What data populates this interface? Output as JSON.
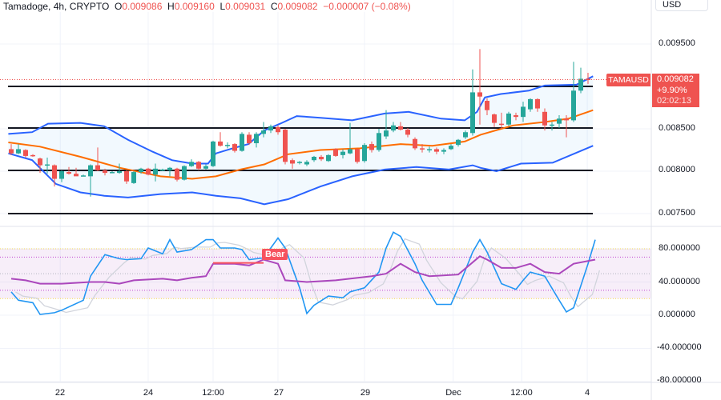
{
  "header": {
    "symbol": "Tamadoge, 4h, CRYPTO",
    "o_label": "O",
    "o": "0.009086",
    "h_label": "H",
    "h": "0.009160",
    "l_label": "L",
    "l": "0.009031",
    "c_label": "C",
    "c": "0.009082",
    "change": "−0.000007 (−0.08%)"
  },
  "currency": "USD",
  "price_label": {
    "symbol": "TAMAUSD",
    "price": "0.009082",
    "change": "+9.90%",
    "countdown": "02:02:13"
  },
  "colors": {
    "up": "#26a69a",
    "down": "#ef5350",
    "bands": "#2962ff",
    "basis": "#ff6d00",
    "k": "#2196f3",
    "rsi": "#ab47bc",
    "bear": "#f7525f"
  },
  "chart_data": [
    {
      "type": "candlestick",
      "y_ticks": [
        "0.009500",
        "0.008500",
        "0.008000",
        "0.007500"
      ],
      "y_tick_values": [
        0.0095,
        0.0085,
        0.008,
        0.0075
      ],
      "ylim": [
        0.00742,
        0.0097
      ],
      "x_ticks": [
        "22",
        "24",
        "12:00",
        "27",
        "29",
        "Dec",
        "12:00",
        "4"
      ],
      "x_tick_bars": [
        6.8,
        19,
        28,
        37,
        49,
        61.3,
        70.8,
        79.9
      ],
      "candles_ohlc": [
        [
          0.00826,
          0.00832,
          0.00819,
          0.00821
        ],
        [
          0.00821,
          0.00832,
          0.0082,
          0.00826
        ],
        [
          0.00825,
          0.00826,
          0.00816,
          0.00818
        ],
        [
          0.00819,
          0.0082,
          0.00817,
          0.00818
        ],
        [
          0.00815,
          0.00816,
          0.00798,
          0.00807
        ],
        [
          0.00807,
          0.00816,
          0.00797,
          0.00808
        ],
        [
          0.00807,
          0.00808,
          0.00782,
          0.00791
        ],
        [
          0.00791,
          0.00801,
          0.00787,
          0.008
        ],
        [
          0.00799,
          0.00805,
          0.00796,
          0.00797
        ],
        [
          0.00797,
          0.00804,
          0.00795,
          0.00794
        ],
        [
          0.00795,
          0.00796,
          0.00794,
          0.00795
        ],
        [
          0.00794,
          0.00808,
          0.0077,
          0.00807
        ],
        [
          0.00807,
          0.00828,
          0.008,
          0.00801
        ],
        [
          0.00801,
          0.00803,
          0.00795,
          0.00798
        ],
        [
          0.00799,
          0.008,
          0.00798,
          0.00799
        ],
        [
          0.00798,
          0.00809,
          0.00797,
          0.008
        ],
        [
          0.008,
          0.00801,
          0.00785,
          0.00788
        ],
        [
          0.00786,
          0.008,
          0.00785,
          0.00799
        ],
        [
          0.00799,
          0.00804,
          0.00797,
          0.00803
        ],
        [
          0.00803,
          0.00804,
          0.00795,
          0.00796
        ],
        [
          0.00796,
          0.00809,
          0.00788,
          0.00803
        ],
        [
          0.00801,
          0.00803,
          0.008,
          0.00802
        ],
        [
          0.00801,
          0.00805,
          0.00794,
          0.00804
        ],
        [
          0.00803,
          0.00804,
          0.00788,
          0.0079
        ],
        [
          0.0079,
          0.00807,
          0.00789,
          0.00806
        ],
        [
          0.00806,
          0.00814,
          0.00805,
          0.00811
        ],
        [
          0.00811,
          0.00812,
          0.00801,
          0.00803
        ],
        [
          0.00803,
          0.00808,
          0.00802,
          0.00806
        ],
        [
          0.00806,
          0.00836,
          0.00805,
          0.00835
        ],
        [
          0.00835,
          0.00846,
          0.00829,
          0.0083
        ],
        [
          0.0083,
          0.00834,
          0.00827,
          0.00831
        ],
        [
          0.00832,
          0.00833,
          0.00822,
          0.00824
        ],
        [
          0.00824,
          0.00846,
          0.00823,
          0.00844
        ],
        [
          0.00843,
          0.00846,
          0.00831,
          0.00833
        ],
        [
          0.00833,
          0.00846,
          0.00828,
          0.00844
        ],
        [
          0.00844,
          0.00858,
          0.0084,
          0.00848
        ],
        [
          0.00848,
          0.00855,
          0.00845,
          0.00853
        ],
        [
          0.00852,
          0.00854,
          0.00843,
          0.00846
        ],
        [
          0.00849,
          0.0085,
          0.00808,
          0.00811
        ],
        [
          0.00813,
          0.00815,
          0.00803,
          0.00809
        ],
        [
          0.0081,
          0.00812,
          0.00808,
          0.00811
        ],
        [
          0.00808,
          0.00813,
          0.00806,
          0.00811
        ],
        [
          0.00813,
          0.00818,
          0.00811,
          0.00817
        ],
        [
          0.00817,
          0.00819,
          0.00812,
          0.00814
        ],
        [
          0.00812,
          0.0082,
          0.00811,
          0.00819
        ],
        [
          0.00826,
          0.00827,
          0.00817,
          0.00818
        ],
        [
          0.00819,
          0.00826,
          0.00815,
          0.00823
        ],
        [
          0.00821,
          0.00857,
          0.0082,
          0.00826
        ],
        [
          0.00826,
          0.00827,
          0.00809,
          0.00811
        ],
        [
          0.00812,
          0.00833,
          0.0081,
          0.00831
        ],
        [
          0.00832,
          0.00835,
          0.00822,
          0.00825
        ],
        [
          0.00825,
          0.0085,
          0.00823,
          0.00845
        ],
        [
          0.00841,
          0.00872,
          0.00838,
          0.00848
        ],
        [
          0.00848,
          0.00858,
          0.00846,
          0.00854
        ],
        [
          0.00853,
          0.00858,
          0.00848,
          0.00849
        ],
        [
          0.00849,
          0.00851,
          0.0084,
          0.00843
        ],
        [
          0.00838,
          0.0084,
          0.00825,
          0.00827
        ],
        [
          0.00827,
          0.00832,
          0.00822,
          0.00826
        ],
        [
          0.00826,
          0.00829,
          0.00822,
          0.00826
        ],
        [
          0.00826,
          0.00828,
          0.0082,
          0.00823
        ],
        [
          0.00823,
          0.00827,
          0.0082,
          0.00825
        ],
        [
          0.00826,
          0.00832,
          0.00825,
          0.0083
        ],
        [
          0.00831,
          0.00838,
          0.00829,
          0.00837
        ],
        [
          0.0084,
          0.00848,
          0.00838,
          0.00846
        ],
        [
          0.00845,
          0.0092,
          0.00842,
          0.00893
        ],
        [
          0.00893,
          0.00944,
          0.00855,
          0.00888
        ],
        [
          0.00883,
          0.00886,
          0.00866,
          0.00872
        ],
        [
          0.00867,
          0.00868,
          0.00852,
          0.00857
        ],
        [
          0.00856,
          0.00869,
          0.0085,
          0.00855
        ],
        [
          0.00855,
          0.0087,
          0.00853,
          0.00868
        ],
        [
          0.00866,
          0.00869,
          0.0086,
          0.00864
        ],
        [
          0.00864,
          0.00882,
          0.00858,
          0.00876
        ],
        [
          0.00873,
          0.00886,
          0.0087,
          0.00885
        ],
        [
          0.00885,
          0.00886,
          0.0087,
          0.00874
        ],
        [
          0.0087,
          0.00874,
          0.00848,
          0.00854
        ],
        [
          0.00855,
          0.00858,
          0.00848,
          0.00855
        ],
        [
          0.00856,
          0.00866,
          0.00851,
          0.00862
        ],
        [
          0.00862,
          0.00866,
          0.0084,
          0.0086
        ],
        [
          0.0086,
          0.00929,
          0.00858,
          0.00895
        ],
        [
          0.00895,
          0.00922,
          0.00892,
          0.00909
        ],
        [
          0.00909,
          0.00916,
          0.00903,
          0.00908
        ]
      ],
      "bollinger_upper": [
        [
          -0.4,
          0.00844
        ],
        [
          2.9,
          0.00846
        ],
        [
          5.1,
          0.00856
        ],
        [
          9.6,
          0.00857
        ],
        [
          12.9,
          0.00853
        ],
        [
          16.2,
          0.00837
        ],
        [
          19.6,
          0.00823
        ],
        [
          22.3,
          0.00813
        ],
        [
          25.1,
          0.00809
        ],
        [
          27.3,
          0.00809
        ],
        [
          28.4,
          0.00821
        ],
        [
          30.7,
          0.00827
        ],
        [
          32.9,
          0.00832
        ],
        [
          35.1,
          0.00848
        ],
        [
          37.3,
          0.00856
        ],
        [
          39.6,
          0.00865
        ],
        [
          42.9,
          0.00863
        ],
        [
          47.3,
          0.0086
        ],
        [
          51.8,
          0.00868
        ],
        [
          55.1,
          0.0087
        ],
        [
          59.6,
          0.00862
        ],
        [
          62.9,
          0.0086
        ],
        [
          64.6,
          0.0087
        ],
        [
          65.7,
          0.00887
        ],
        [
          67.9,
          0.00891
        ],
        [
          71.8,
          0.00895
        ],
        [
          74,
          0.00901
        ],
        [
          78.4,
          0.00902
        ],
        [
          80.7,
          0.00912
        ]
      ],
      "bollinger_lower": [
        [
          -0.4,
          0.00821
        ],
        [
          2.9,
          0.00813
        ],
        [
          6.2,
          0.00785
        ],
        [
          9.6,
          0.00775
        ],
        [
          12.9,
          0.00771
        ],
        [
          16.2,
          0.00769
        ],
        [
          20.7,
          0.00773
        ],
        [
          25.1,
          0.00775
        ],
        [
          28.4,
          0.00771
        ],
        [
          31.8,
          0.00768
        ],
        [
          35.1,
          0.00761
        ],
        [
          38.4,
          0.00767
        ],
        [
          42.9,
          0.00782
        ],
        [
          47.3,
          0.00794
        ],
        [
          51.8,
          0.00802
        ],
        [
          56.2,
          0.00805
        ],
        [
          60.7,
          0.00802
        ],
        [
          64,
          0.00807
        ],
        [
          65.1,
          0.00804
        ],
        [
          67.3,
          0.008
        ],
        [
          70.7,
          0.00809
        ],
        [
          75.1,
          0.0081
        ],
        [
          80.7,
          0.0083
        ]
      ],
      "bollinger_basis": [
        [
          -0.4,
          0.00834
        ],
        [
          4,
          0.00829
        ],
        [
          9.6,
          0.00817
        ],
        [
          15.1,
          0.00804
        ],
        [
          20.7,
          0.00794
        ],
        [
          25.1,
          0.00791
        ],
        [
          28.4,
          0.00794
        ],
        [
          31.8,
          0.00802
        ],
        [
          35.1,
          0.00808
        ],
        [
          38.4,
          0.0082
        ],
        [
          42.9,
          0.00825
        ],
        [
          48.4,
          0.00827
        ],
        [
          54,
          0.00832
        ],
        [
          58.4,
          0.0083
        ],
        [
          62.9,
          0.00835
        ],
        [
          65.1,
          0.00843
        ],
        [
          69.6,
          0.00854
        ],
        [
          74,
          0.00858
        ],
        [
          77.3,
          0.00862
        ],
        [
          80.7,
          0.00872
        ]
      ],
      "horizontal_levels": [
        0.009,
        0.00851,
        0.00801,
        0.0075
      ]
    },
    {
      "type": "line",
      "y_ticks": [
        "80.000000",
        "40.000000",
        "0.000000",
        "-40.000000",
        "-80.000000"
      ],
      "y_tick_values": [
        80,
        40,
        0,
        -40,
        -80
      ],
      "ylim": [
        -82,
        110
      ],
      "band": [
        20,
        80
      ],
      "levels": [
        70,
        50,
        30
      ],
      "stoch_k": [
        [
          0,
          28
        ],
        [
          1,
          18
        ],
        [
          3,
          15
        ],
        [
          4,
          1
        ],
        [
          6,
          3
        ],
        [
          7,
          6
        ],
        [
          10,
          18
        ],
        [
          11,
          47
        ],
        [
          13,
          73
        ],
        [
          15,
          68
        ],
        [
          16,
          67
        ],
        [
          18,
          68
        ],
        [
          19,
          81
        ],
        [
          21,
          74
        ],
        [
          22,
          91
        ],
        [
          23,
          76
        ],
        [
          25,
          79
        ],
        [
          27,
          91
        ],
        [
          28,
          91
        ],
        [
          29,
          81
        ],
        [
          31,
          81
        ],
        [
          32,
          79
        ],
        [
          33,
          67
        ],
        [
          35,
          69
        ],
        [
          36,
          81
        ],
        [
          37,
          93
        ],
        [
          38,
          81
        ],
        [
          40,
          33
        ],
        [
          41,
          2
        ],
        [
          42,
          12
        ],
        [
          44,
          23
        ],
        [
          46,
          21
        ],
        [
          47,
          28
        ],
        [
          49,
          33
        ],
        [
          51,
          52
        ],
        [
          52,
          81
        ],
        [
          53,
          100
        ],
        [
          54,
          95
        ],
        [
          56,
          62
        ],
        [
          57,
          42
        ],
        [
          59,
          13
        ],
        [
          61,
          13
        ],
        [
          62,
          33
        ],
        [
          64,
          76
        ],
        [
          65,
          91
        ],
        [
          66,
          76
        ],
        [
          68,
          38
        ],
        [
          70,
          31
        ],
        [
          71,
          42
        ],
        [
          72,
          52
        ],
        [
          74,
          47
        ],
        [
          76,
          18
        ],
        [
          77,
          4
        ],
        [
          78,
          9
        ],
        [
          80,
          62
        ],
        [
          81,
          91
        ]
      ],
      "rsi": [
        [
          0,
          44
        ],
        [
          2,
          42
        ],
        [
          4,
          38
        ],
        [
          7,
          38
        ],
        [
          11,
          40
        ],
        [
          13,
          40
        ],
        [
          15,
          38
        ],
        [
          17,
          42
        ],
        [
          21,
          44
        ],
        [
          23,
          42
        ],
        [
          25,
          45
        ],
        [
          27,
          47
        ],
        [
          28,
          62
        ],
        [
          31,
          62
        ],
        [
          33,
          60
        ],
        [
          35,
          67
        ],
        [
          37,
          62
        ],
        [
          38,
          42
        ],
        [
          41,
          40
        ],
        [
          45,
          42
        ],
        [
          50,
          47
        ],
        [
          52,
          50
        ],
        [
          54,
          62
        ],
        [
          56,
          52
        ],
        [
          58,
          47
        ],
        [
          62,
          49
        ],
        [
          65,
          71
        ],
        [
          66,
          67
        ],
        [
          68,
          57
        ],
        [
          70,
          57
        ],
        [
          72,
          62
        ],
        [
          74,
          52
        ],
        [
          76,
          50
        ],
        [
          78,
          62
        ],
        [
          81,
          67
        ]
      ],
      "divergence_line": [
        [
          28,
          63
        ],
        [
          35,
          63
        ]
      ],
      "annotation": "Bear"
    }
  ]
}
